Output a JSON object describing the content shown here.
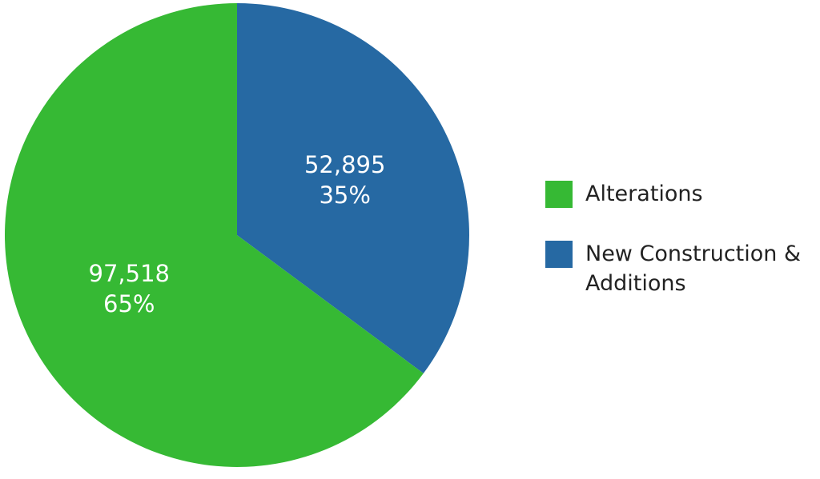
{
  "chart_data": {
    "type": "pie",
    "categories": [
      "Alterations",
      "New Construction & Additions"
    ],
    "values": [
      97518,
      52895
    ],
    "value_labels": [
      "97,518",
      "52,895"
    ],
    "percent_labels": [
      "65%",
      "35%"
    ],
    "colors": [
      "#36b934",
      "#2669a3"
    ],
    "legend": "right"
  }
}
